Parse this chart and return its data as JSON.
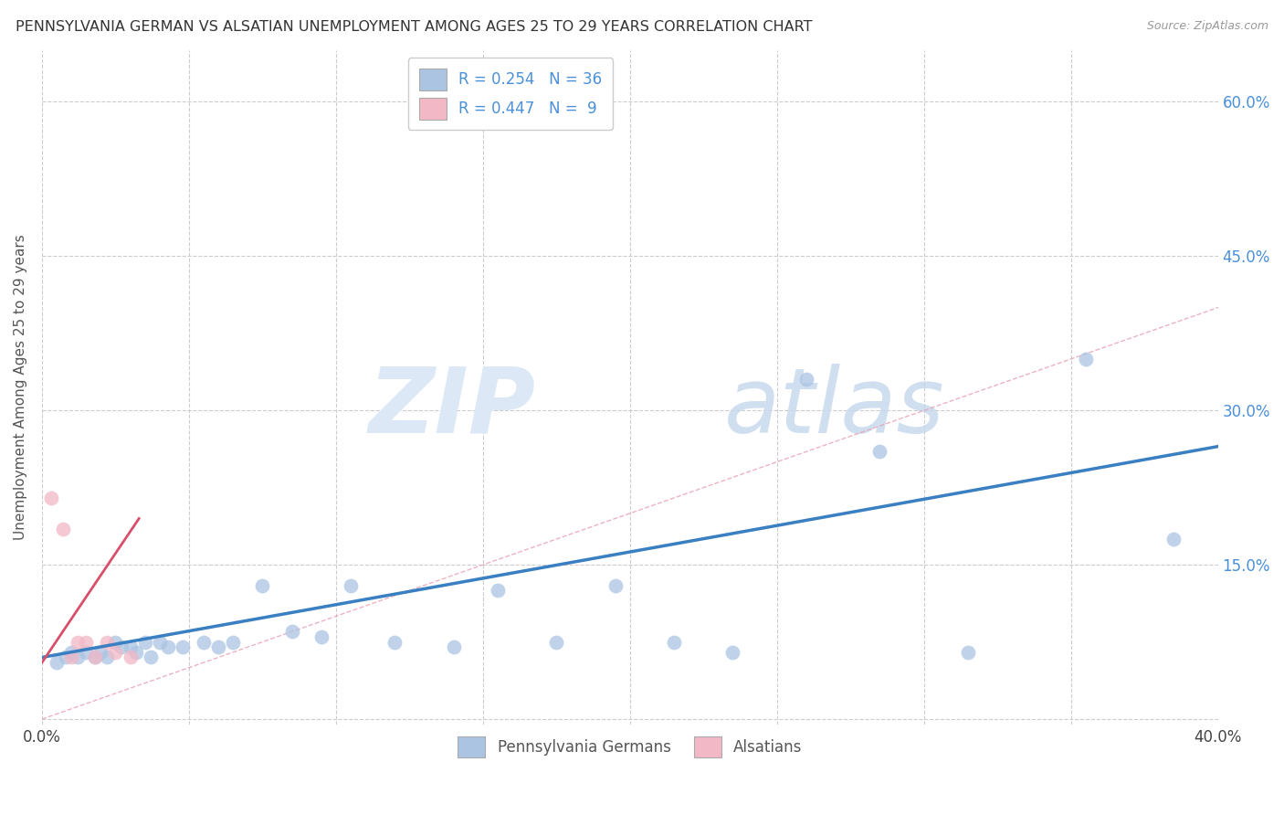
{
  "title": "PENNSYLVANIA GERMAN VS ALSATIAN UNEMPLOYMENT AMONG AGES 25 TO 29 YEARS CORRELATION CHART",
  "source": "Source: ZipAtlas.com",
  "ylabel": "Unemployment Among Ages 25 to 29 years",
  "xlim": [
    0.0,
    0.4
  ],
  "ylim": [
    -0.005,
    0.65
  ],
  "xticks": [
    0.0,
    0.05,
    0.1,
    0.15,
    0.2,
    0.25,
    0.3,
    0.35,
    0.4
  ],
  "yticks": [
    0.0,
    0.15,
    0.3,
    0.45,
    0.6
  ],
  "pg_R": 0.254,
  "pg_N": 36,
  "al_R": 0.447,
  "al_N": 9,
  "pg_color": "#aac4e2",
  "al_color": "#f2b8c6",
  "pg_line_color": "#3a7fc1",
  "al_line_color": "#d94f6a",
  "diagonal_color": "#e8a0b0",
  "background_color": "#ffffff",
  "grid_color": "#cccccc",
  "pg_scatter_x": [
    0.005,
    0.008,
    0.01,
    0.012,
    0.015,
    0.018,
    0.02,
    0.022,
    0.025,
    0.027,
    0.03,
    0.032,
    0.035,
    0.037,
    0.04,
    0.043,
    0.048,
    0.055,
    0.06,
    0.065,
    0.075,
    0.085,
    0.095,
    0.105,
    0.12,
    0.14,
    0.155,
    0.175,
    0.195,
    0.215,
    0.235,
    0.26,
    0.285,
    0.315,
    0.355,
    0.385
  ],
  "pg_scatter_y": [
    0.055,
    0.06,
    0.065,
    0.06,
    0.065,
    0.06,
    0.065,
    0.06,
    0.075,
    0.07,
    0.07,
    0.065,
    0.075,
    0.06,
    0.075,
    0.07,
    0.07,
    0.075,
    0.07,
    0.075,
    0.13,
    0.085,
    0.08,
    0.13,
    0.075,
    0.07,
    0.125,
    0.075,
    0.13,
    0.075,
    0.065,
    0.33,
    0.26,
    0.065,
    0.35,
    0.175
  ],
  "al_scatter_x": [
    0.003,
    0.007,
    0.01,
    0.012,
    0.015,
    0.018,
    0.022,
    0.025,
    0.03
  ],
  "al_scatter_y": [
    0.215,
    0.185,
    0.06,
    0.075,
    0.075,
    0.06,
    0.075,
    0.065,
    0.06
  ],
  "pg_trendline_x": [
    0.0,
    0.4
  ],
  "pg_trendline_y": [
    0.06,
    0.265
  ],
  "al_trendline_x": [
    0.0,
    0.033
  ],
  "al_trendline_y": [
    0.055,
    0.195
  ]
}
